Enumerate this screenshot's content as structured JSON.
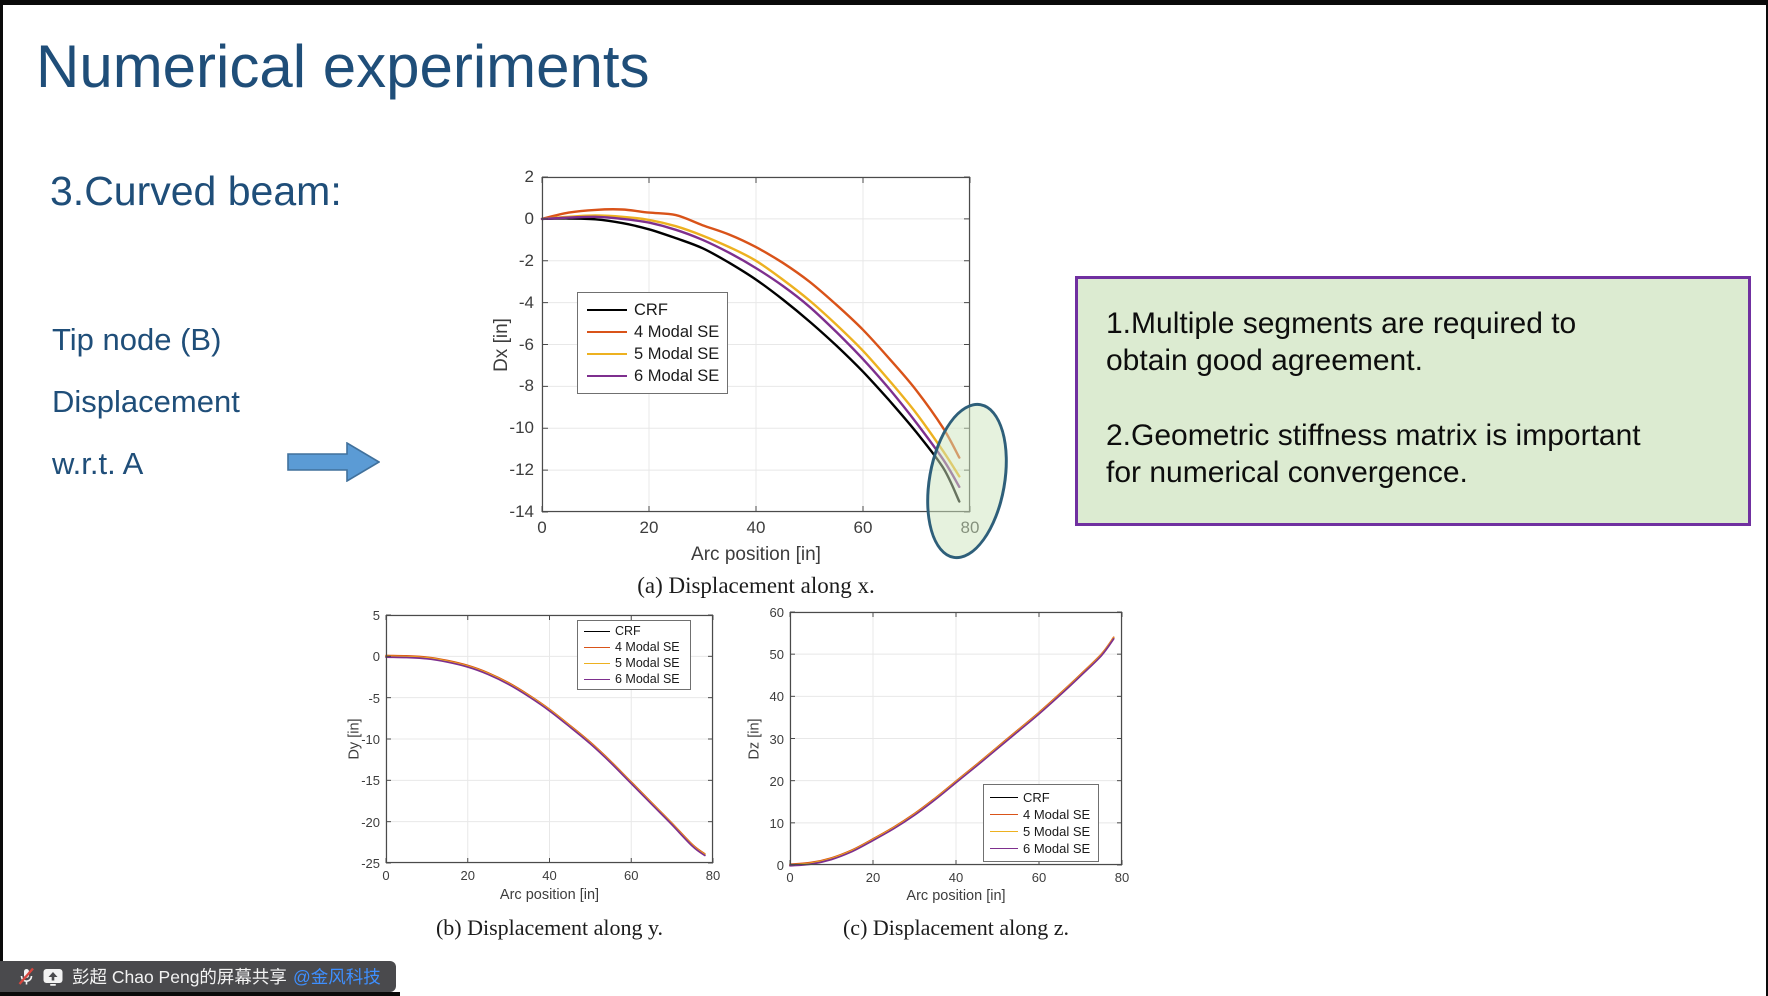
{
  "slide": {
    "title": "Numerical experiments",
    "section": "3.Curved beam:",
    "side_lines": [
      "Tip node (B)",
      "Displacement",
      "w.r.t. A"
    ],
    "note1": "1.Multiple segments are required to\nobtain good agreement.",
    "note2": "2.Geometric stiffness matrix is important\nfor numerical convergence."
  },
  "share_bar": {
    "label": "彭超 Chao Peng的屏幕共享",
    "mention": "@金风科技"
  },
  "colors": {
    "title_blue": "#1F4E79",
    "arrow_fill": "#5B9BD5",
    "arrow_border": "#41719C",
    "note_bg": "#DCEBD1",
    "note_border": "#7030A0",
    "highlight_stroke": "#2E5F7A",
    "series_crf": "#000000",
    "series_4modal": "#D95319",
    "series_5modal": "#EDB120",
    "series_6modal": "#7E2F8E"
  },
  "chart_data": [
    {
      "id": "dx",
      "type": "line",
      "caption": "(a) Displacement along x.",
      "xlabel": "Arc position [in]",
      "ylabel": "Dx [in]",
      "xlim": [
        0,
        80
      ],
      "ylim": [
        -14,
        2
      ],
      "xticks": [
        0,
        20,
        40,
        60,
        80
      ],
      "yticks": [
        2,
        0,
        -2,
        -4,
        -6,
        -8,
        -10,
        -12,
        -14
      ],
      "grid": true,
      "legend_position": "upper left inside",
      "x": [
        0,
        5,
        10,
        15,
        20,
        25,
        30,
        35,
        40,
        45,
        50,
        55,
        60,
        65,
        70,
        75,
        78
      ],
      "series": [
        {
          "name": "CRF",
          "color": "#000000",
          "values": [
            0,
            0.02,
            -0.02,
            -0.2,
            -0.5,
            -0.92,
            -1.4,
            -2.1,
            -2.9,
            -3.85,
            -4.9,
            -6.05,
            -7.3,
            -8.7,
            -10.2,
            -11.9,
            -13.5
          ]
        },
        {
          "name": "4 Modal SE",
          "color": "#D95319",
          "values": [
            0,
            0.3,
            0.43,
            0.45,
            0.3,
            0.18,
            -0.3,
            -0.75,
            -1.35,
            -2.1,
            -3.0,
            -4.1,
            -5.3,
            -6.7,
            -8.2,
            -10.0,
            -11.4
          ]
        },
        {
          "name": "5 Modal SE",
          "color": "#EDB120",
          "values": [
            0,
            0.1,
            0.16,
            0.1,
            -0.05,
            -0.35,
            -0.8,
            -1.35,
            -2.0,
            -2.9,
            -3.9,
            -5.05,
            -6.3,
            -7.75,
            -9.3,
            -11.1,
            -12.3
          ]
        },
        {
          "name": "6 Modal SE",
          "color": "#7E2F8E",
          "values": [
            0,
            0.06,
            0.1,
            0.0,
            -0.18,
            -0.52,
            -1.0,
            -1.62,
            -2.35,
            -3.2,
            -4.2,
            -5.4,
            -6.7,
            -8.15,
            -9.75,
            -11.5,
            -12.8
          ]
        }
      ],
      "annotation": "green ellipse highlighting curve end points near x=80"
    },
    {
      "id": "dy",
      "type": "line",
      "caption": "(b) Displacement along y.",
      "xlabel": "Arc position [in]",
      "ylabel": "Dy [in]",
      "xlim": [
        0,
        80
      ],
      "ylim": [
        -25,
        5
      ],
      "xticks": [
        0,
        20,
        40,
        60,
        80
      ],
      "yticks": [
        5,
        0,
        -5,
        -10,
        -15,
        -20,
        -25
      ],
      "grid": true,
      "legend_position": "upper right inside",
      "overlapping": true,
      "x": [
        0,
        5,
        10,
        15,
        20,
        25,
        30,
        35,
        40,
        45,
        50,
        55,
        60,
        65,
        70,
        75,
        78
      ],
      "series": [
        {
          "name": "CRF",
          "color": "#000000",
          "values": [
            0,
            -0.05,
            -0.2,
            -0.6,
            -1.2,
            -2.1,
            -3.3,
            -4.8,
            -6.5,
            -8.45,
            -10.5,
            -12.8,
            -15.3,
            -17.8,
            -20.3,
            -22.9,
            -24.0
          ]
        },
        {
          "name": "4 Modal SE",
          "color": "#D95319",
          "values": [
            0,
            -0.05,
            -0.2,
            -0.6,
            -1.2,
            -2.1,
            -3.3,
            -4.8,
            -6.5,
            -8.45,
            -10.5,
            -12.8,
            -15.3,
            -17.8,
            -20.3,
            -22.9,
            -24.0
          ]
        },
        {
          "name": "5 Modal SE",
          "color": "#EDB120",
          "values": [
            0,
            -0.05,
            -0.2,
            -0.6,
            -1.2,
            -2.1,
            -3.3,
            -4.8,
            -6.5,
            -8.45,
            -10.5,
            -12.8,
            -15.3,
            -17.8,
            -20.3,
            -22.9,
            -24.0
          ]
        },
        {
          "name": "6 Modal SE",
          "color": "#7E2F8E",
          "values": [
            0,
            -0.05,
            -0.2,
            -0.6,
            -1.2,
            -2.1,
            -3.3,
            -4.8,
            -6.5,
            -8.45,
            -10.5,
            -12.8,
            -15.3,
            -17.8,
            -20.3,
            -22.9,
            -24.0
          ]
        }
      ]
    },
    {
      "id": "dz",
      "type": "line",
      "caption": "(c) Displacement along z.",
      "xlabel": "Arc position [in]",
      "ylabel": "Dz [in]",
      "xlim": [
        0,
        80
      ],
      "ylim": [
        0,
        60
      ],
      "xticks": [
        0,
        20,
        40,
        60,
        80
      ],
      "yticks": [
        0,
        10,
        20,
        30,
        40,
        50,
        60
      ],
      "grid": true,
      "legend_position": "lower right inside",
      "overlapping": true,
      "x": [
        0,
        5,
        10,
        15,
        20,
        25,
        30,
        35,
        40,
        45,
        50,
        55,
        60,
        65,
        70,
        75,
        78
      ],
      "series": [
        {
          "name": "CRF",
          "color": "#000000",
          "values": [
            0,
            0.4,
            1.5,
            3.4,
            6.0,
            8.8,
            12.0,
            15.7,
            19.7,
            23.7,
            27.8,
            31.9,
            36.0,
            40.4,
            45.0,
            49.8,
            53.8
          ]
        },
        {
          "name": "4 Modal SE",
          "color": "#D95319",
          "values": [
            0,
            0.4,
            1.5,
            3.4,
            6.0,
            8.8,
            12.0,
            15.7,
            19.7,
            23.7,
            27.8,
            31.9,
            36.0,
            40.4,
            45.0,
            49.8,
            53.8
          ]
        },
        {
          "name": "5 Modal SE",
          "color": "#EDB120",
          "values": [
            0,
            0.4,
            1.5,
            3.4,
            6.0,
            8.8,
            12.0,
            15.7,
            19.7,
            23.7,
            27.8,
            31.9,
            36.0,
            40.4,
            45.0,
            49.8,
            53.8
          ]
        },
        {
          "name": "6 Modal SE",
          "color": "#7E2F8E",
          "values": [
            0,
            0.4,
            1.5,
            3.4,
            6.0,
            8.8,
            12.0,
            15.7,
            19.7,
            23.7,
            27.8,
            31.9,
            36.0,
            40.4,
            45.0,
            49.8,
            53.8
          ]
        }
      ]
    }
  ]
}
